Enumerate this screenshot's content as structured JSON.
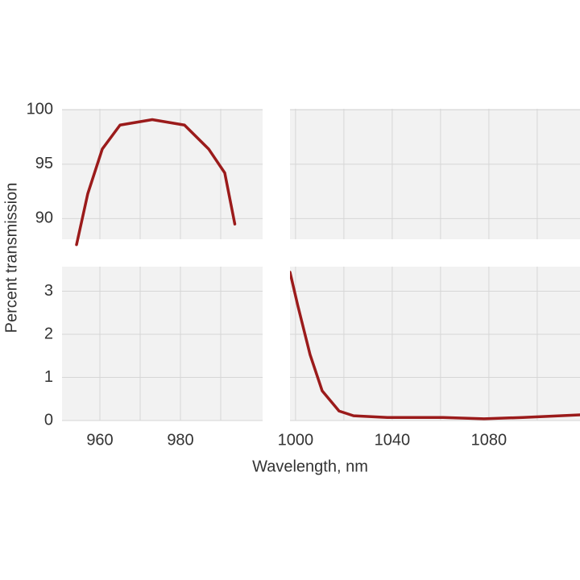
{
  "chart_data": {
    "type": "line",
    "x_label": "Wavelength, nm",
    "y_label": "Percent  transmission",
    "x_segments": [
      {
        "xlim": [
          950.6,
          1000.4
        ],
        "xticks": [
          960,
          980
        ],
        "xgrid": [
          960,
          970,
          980,
          990
        ]
      },
      {
        "xlim": [
          997.7,
          1117.7
        ],
        "xticks": [
          1000,
          1040,
          1080
        ],
        "xgrid": [
          1000,
          1020,
          1040,
          1060,
          1080,
          1100
        ]
      }
    ],
    "y_segments": [
      {
        "ylim": [
          88.1,
          100.1
        ],
        "yticks": [
          90,
          95,
          100
        ]
      },
      {
        "ylim": [
          0,
          3.57
        ],
        "yticks": [
          0,
          1,
          2,
          3
        ]
      }
    ],
    "grid": true,
    "series": [
      {
        "color": "#9b1b1b",
        "x_segment": 0,
        "y_segment": 0,
        "x": [
          954.2,
          957,
          960.6,
          965,
          973,
          981,
          987,
          991,
          993.5
        ],
        "values": [
          87.6,
          92.3,
          96.4,
          98.6,
          99.1,
          98.6,
          96.4,
          94.2,
          89.5
        ]
      },
      {
        "color": "#9b1b1b",
        "x_segment": 1,
        "y_segment": 1,
        "x": [
          997.7,
          1001,
          1006,
          1011,
          1018,
          1024,
          1038,
          1061,
          1078,
          1094,
          1117.7
        ],
        "values": [
          3.44,
          2.65,
          1.53,
          0.69,
          0.22,
          0.11,
          0.07,
          0.07,
          0.04,
          0.07,
          0.13
        ]
      }
    ]
  }
}
